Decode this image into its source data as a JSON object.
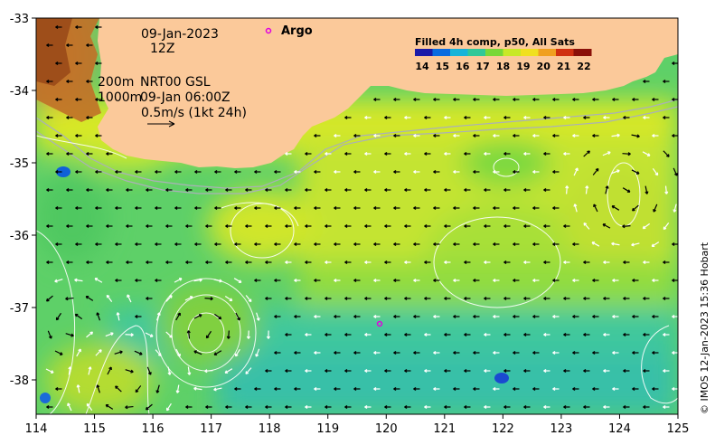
{
  "annotations": {
    "date": "09-Jan-2023",
    "hour": "12Z",
    "isobath_200": "200m",
    "isobath_1000": "1000m",
    "product": "NRT00 GSL",
    "product_time": "09-Jan 06:00Z",
    "scale_label": "0.5m/s (1kt 24h)"
  },
  "legend": {
    "argo_label": "Argo",
    "argo_color": "#e000e0"
  },
  "colorbar": {
    "title": "Filled 4h comp, p50, All Sats",
    "labels": [
      "14",
      "15",
      "16",
      "17",
      "18",
      "19",
      "20",
      "21",
      "22"
    ],
    "colors": [
      "#1a1aa8",
      "#0a6ce0",
      "#18b4d8",
      "#30c898",
      "#78d838",
      "#c8e828",
      "#f0e020",
      "#f0a020",
      "#d03010",
      "#8a1008"
    ]
  },
  "credit": "© IMOS 12-Jan-2023 15:36 Hobart",
  "map": {
    "x_ticks": [
      "114",
      "115",
      "116",
      "117",
      "118",
      "119",
      "120",
      "121",
      "122",
      "123",
      "124",
      "125"
    ],
    "y_ticks": [
      "-33",
      "-34",
      "-35",
      "-36",
      "-37",
      "-38"
    ],
    "land_color": "#fbc99a"
  }
}
